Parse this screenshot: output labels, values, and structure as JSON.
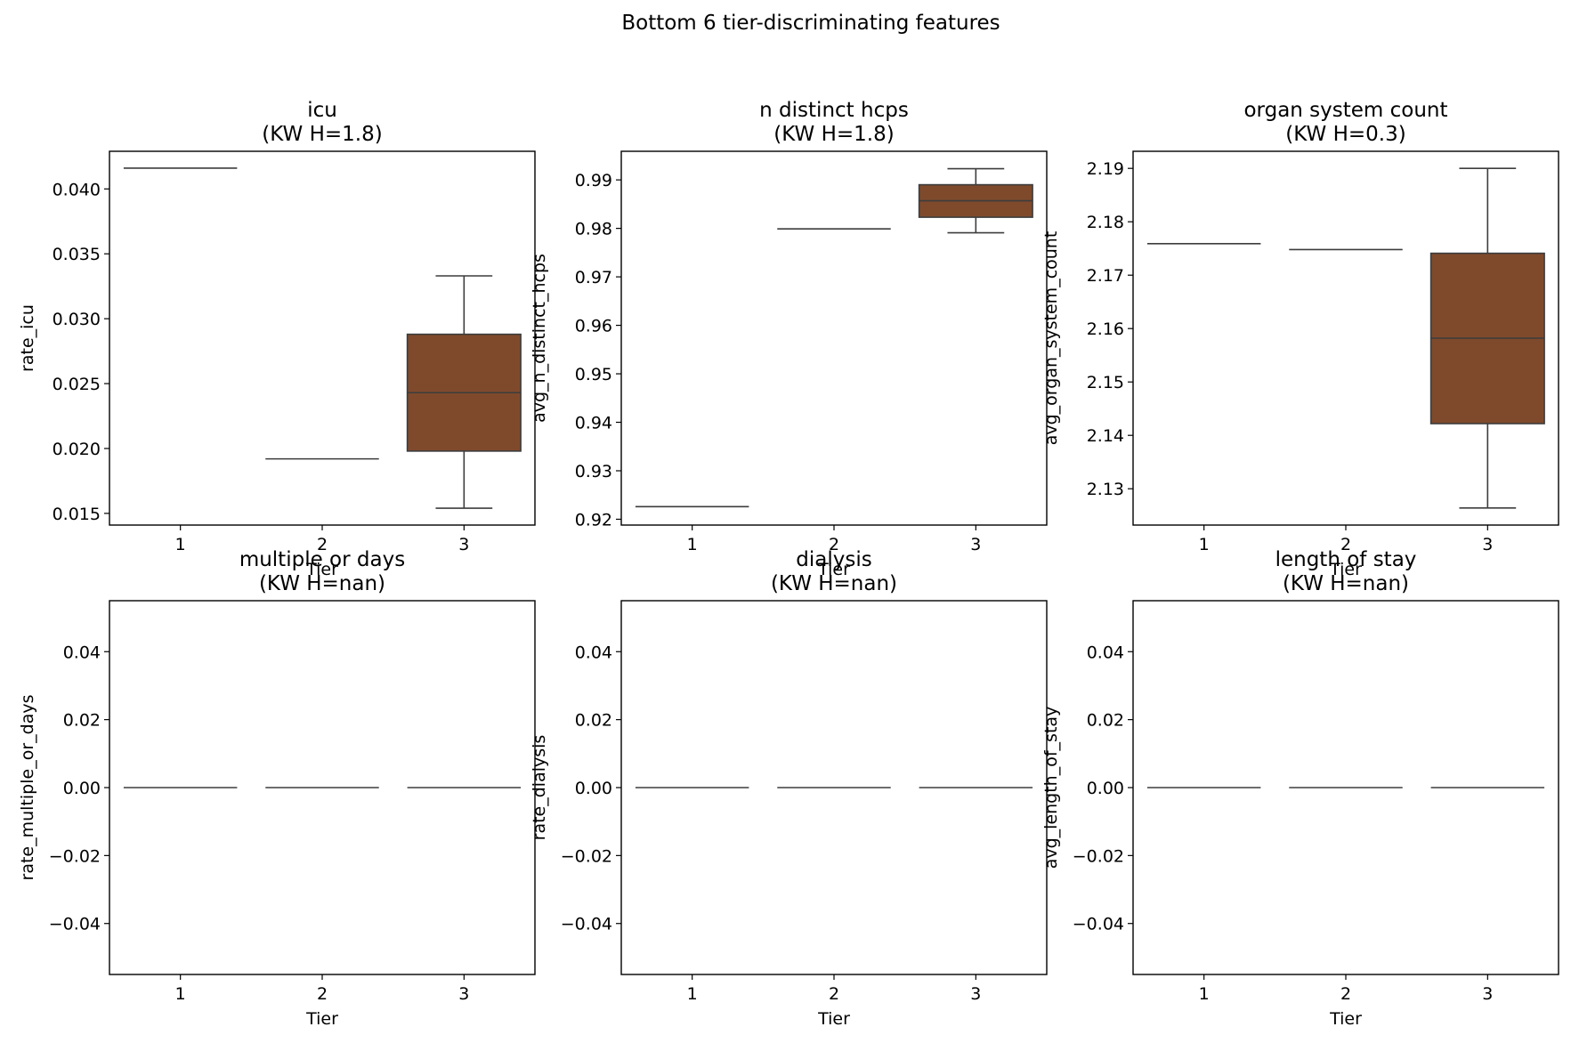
{
  "chart_data": {
    "suptitle": "Bottom 6 tier-discriminating features",
    "box_color": "#7f4a2c",
    "edge_color": "#3d3d3d",
    "panels": [
      {
        "type": "box",
        "title": "icu",
        "subtitle": "(KW H=1.8)",
        "xlabel": "Tier",
        "ylabel": "rate_icu",
        "categories": [
          "1",
          "2",
          "3"
        ],
        "ylim": [
          0.0141,
          0.0429
        ],
        "yticks": [
          0.015,
          0.02,
          0.025,
          0.03,
          0.035,
          0.04
        ],
        "ytick_labels": [
          "0.015",
          "0.020",
          "0.025",
          "0.030",
          "0.035",
          "0.040"
        ],
        "boxes": [
          {
            "tier": "1",
            "min": 0.0416,
            "q1": 0.0416,
            "median": 0.0416,
            "q3": 0.0416,
            "max": 0.0416
          },
          {
            "tier": "2",
            "min": 0.0192,
            "q1": 0.0192,
            "median": 0.0192,
            "q3": 0.0192,
            "max": 0.0192
          },
          {
            "tier": "3",
            "min": 0.0154,
            "q1": 0.0198,
            "median": 0.0243,
            "q3": 0.0288,
            "max": 0.0333
          }
        ]
      },
      {
        "type": "box",
        "title": "n distinct hcps",
        "subtitle": "(KW H=1.8)",
        "xlabel": "Tier",
        "ylabel": "avg_n_distinct_hcps",
        "categories": [
          "1",
          "2",
          "3"
        ],
        "ylim": [
          0.9188,
          0.9959
        ],
        "yticks": [
          0.92,
          0.93,
          0.94,
          0.95,
          0.96,
          0.97,
          0.98,
          0.99
        ],
        "ytick_labels": [
          "0.92",
          "0.93",
          "0.94",
          "0.95",
          "0.96",
          "0.97",
          "0.98",
          "0.99"
        ],
        "boxes": [
          {
            "tier": "1",
            "min": 0.9226,
            "q1": 0.9226,
            "median": 0.9226,
            "q3": 0.9226,
            "max": 0.9226
          },
          {
            "tier": "2",
            "min": 0.9799,
            "q1": 0.9799,
            "median": 0.9799,
            "q3": 0.9799,
            "max": 0.9799
          },
          {
            "tier": "3",
            "min": 0.9791,
            "q1": 0.9823,
            "median": 0.9857,
            "q3": 0.989,
            "max": 0.9923
          }
        ]
      },
      {
        "type": "box",
        "title": "organ system count",
        "subtitle": "(KW H=0.3)",
        "xlabel": "Tier",
        "ylabel": "avg_organ_system_count",
        "categories": [
          "1",
          "2",
          "3"
        ],
        "ylim": [
          2.1232,
          2.1932
        ],
        "yticks": [
          2.13,
          2.14,
          2.15,
          2.16,
          2.17,
          2.18,
          2.19
        ],
        "ytick_labels": [
          "2.13",
          "2.14",
          "2.15",
          "2.16",
          "2.17",
          "2.18",
          "2.19"
        ],
        "boxes": [
          {
            "tier": "1",
            "min": 2.1759,
            "q1": 2.1759,
            "median": 2.1759,
            "q3": 2.1759,
            "max": 2.1759
          },
          {
            "tier": "2",
            "min": 2.1748,
            "q1": 2.1748,
            "median": 2.1748,
            "q3": 2.1748,
            "max": 2.1748
          },
          {
            "tier": "3",
            "min": 2.1264,
            "q1": 2.1422,
            "median": 2.1582,
            "q3": 2.1741,
            "max": 2.19
          }
        ]
      },
      {
        "type": "box",
        "title": "multiple or days",
        "subtitle": "(KW H=nan)",
        "xlabel": "Tier",
        "ylabel": "rate_multiple_or_days",
        "categories": [
          "1",
          "2",
          "3"
        ],
        "ylim": [
          -0.055,
          0.055
        ],
        "yticks": [
          -0.04,
          -0.02,
          0.0,
          0.02,
          0.04
        ],
        "ytick_labels": [
          "−0.04",
          "−0.02",
          "0.00",
          "0.02",
          "0.04"
        ],
        "boxes": [
          {
            "tier": "1",
            "min": 0.0,
            "q1": 0.0,
            "median": 0.0,
            "q3": 0.0,
            "max": 0.0
          },
          {
            "tier": "2",
            "min": 0.0,
            "q1": 0.0,
            "median": 0.0,
            "q3": 0.0,
            "max": 0.0
          },
          {
            "tier": "3",
            "min": 0.0,
            "q1": 0.0,
            "median": 0.0,
            "q3": 0.0,
            "max": 0.0
          }
        ]
      },
      {
        "type": "box",
        "title": "dialysis",
        "subtitle": "(KW H=nan)",
        "xlabel": "Tier",
        "ylabel": "rate_dialysis",
        "categories": [
          "1",
          "2",
          "3"
        ],
        "ylim": [
          -0.055,
          0.055
        ],
        "yticks": [
          -0.04,
          -0.02,
          0.0,
          0.02,
          0.04
        ],
        "ytick_labels": [
          "−0.04",
          "−0.02",
          "0.00",
          "0.02",
          "0.04"
        ],
        "boxes": [
          {
            "tier": "1",
            "min": 0.0,
            "q1": 0.0,
            "median": 0.0,
            "q3": 0.0,
            "max": 0.0
          },
          {
            "tier": "2",
            "min": 0.0,
            "q1": 0.0,
            "median": 0.0,
            "q3": 0.0,
            "max": 0.0
          },
          {
            "tier": "3",
            "min": 0.0,
            "q1": 0.0,
            "median": 0.0,
            "q3": 0.0,
            "max": 0.0
          }
        ]
      },
      {
        "type": "box",
        "title": "length of stay",
        "subtitle": "(KW H=nan)",
        "xlabel": "Tier",
        "ylabel": "avg_length_of_stay",
        "categories": [
          "1",
          "2",
          "3"
        ],
        "ylim": [
          -0.055,
          0.055
        ],
        "yticks": [
          -0.04,
          -0.02,
          0.0,
          0.02,
          0.04
        ],
        "ytick_labels": [
          "−0.04",
          "−0.02",
          "0.00",
          "0.02",
          "0.04"
        ],
        "boxes": [
          {
            "tier": "1",
            "min": 0.0,
            "q1": 0.0,
            "median": 0.0,
            "q3": 0.0,
            "max": 0.0
          },
          {
            "tier": "2",
            "min": 0.0,
            "q1": 0.0,
            "median": 0.0,
            "q3": 0.0,
            "max": 0.0
          },
          {
            "tier": "3",
            "min": 0.0,
            "q1": 0.0,
            "median": 0.0,
            "q3": 0.0,
            "max": 0.0
          }
        ]
      }
    ]
  }
}
